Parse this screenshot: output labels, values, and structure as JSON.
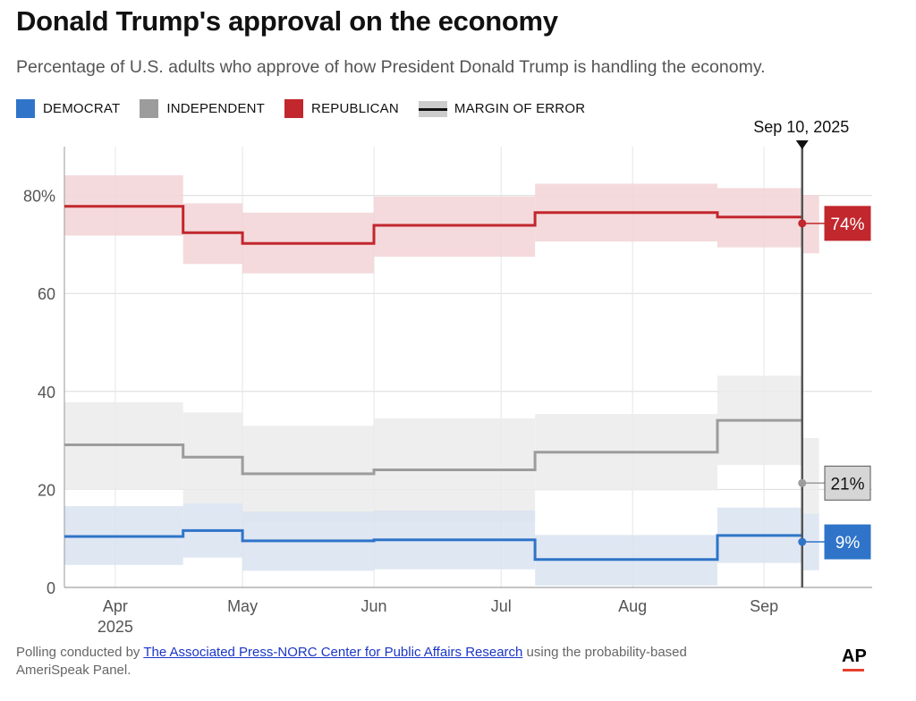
{
  "header": {
    "title": "Donald Trump's approval on the economy",
    "subtitle": "Percentage of U.S. adults who approve of how President Donald Trump is handling the economy."
  },
  "legend": {
    "items": [
      {
        "label": "DEMOCRAT",
        "color": "#2f74c8"
      },
      {
        "label": "INDEPENDENT",
        "color": "#9c9c9c"
      },
      {
        "label": "REPUBLICAN",
        "color": "#c1272d"
      },
      {
        "label": "MARGIN OF ERROR",
        "color": "#111111"
      }
    ]
  },
  "footer": {
    "prefix": "Polling conducted by ",
    "link": "The Associated Press-NORC Center for Public Affairs Research",
    "suffix": " using the probability-based AmeriSpeak Panel.",
    "logo": "AP"
  },
  "chart_data": {
    "type": "line",
    "step": true,
    "y_ticks": [
      {
        "value": 0,
        "label": "0"
      },
      {
        "value": 20,
        "label": "20"
      },
      {
        "value": 40,
        "label": "40"
      },
      {
        "value": 60,
        "label": "60"
      },
      {
        "value": 80,
        "label": "80%"
      }
    ],
    "ylim": [
      0,
      90
    ],
    "xlim": [
      "2025-03-20",
      "2025-09-22"
    ],
    "x_ticks": [
      {
        "date": "2025-04-01",
        "label": "Apr",
        "sublabel": "2025"
      },
      {
        "date": "2025-05-01",
        "label": "May",
        "sublabel": ""
      },
      {
        "date": "2025-06-01",
        "label": "Jun",
        "sublabel": ""
      },
      {
        "date": "2025-07-01",
        "label": "Jul",
        "sublabel": ""
      },
      {
        "date": "2025-08-01",
        "label": "Aug",
        "sublabel": ""
      },
      {
        "date": "2025-09-01",
        "label": "Sep",
        "sublabel": ""
      }
    ],
    "grid": true,
    "current": {
      "date": "2025-09-10",
      "label": "Sep 10, 2025"
    },
    "series": [
      {
        "name": "Republican",
        "color": "#c1272d",
        "band_color": "#f2d3d6",
        "end_label": "74%",
        "end_value": 74.3,
        "steps": [
          {
            "start": "2025-03-20",
            "end": "2025-04-17",
            "value": 77.8,
            "lo": 71.8,
            "hi": 84.1
          },
          {
            "start": "2025-04-17",
            "end": "2025-05-01",
            "value": 72.4,
            "lo": 66.0,
            "hi": 78.4
          },
          {
            "start": "2025-05-01",
            "end": "2025-06-01",
            "value": 70.2,
            "lo": 64.1,
            "hi": 76.5
          },
          {
            "start": "2025-06-01",
            "end": "2025-07-09",
            "value": 73.9,
            "lo": 67.5,
            "hi": 79.8
          },
          {
            "start": "2025-07-09",
            "end": "2025-08-21",
            "value": 76.5,
            "lo": 70.6,
            "hi": 82.4
          },
          {
            "start": "2025-08-21",
            "end": "2025-09-10",
            "value": 75.6,
            "lo": 69.4,
            "hi": 81.5
          },
          {
            "start": "2025-09-10",
            "end": "2025-09-14",
            "value": 74.3,
            "lo": 68.2,
            "hi": 80.1
          }
        ]
      },
      {
        "name": "Independent",
        "color": "#9c9c9c",
        "band_color": "#ebebeb",
        "end_label": "21%",
        "end_value": 21.3,
        "steps": [
          {
            "start": "2025-03-20",
            "end": "2025-04-17",
            "value": 29.1,
            "lo": 19.9,
            "hi": 37.8
          },
          {
            "start": "2025-04-17",
            "end": "2025-05-01",
            "value": 26.6,
            "lo": 17.2,
            "hi": 35.7
          },
          {
            "start": "2025-05-01",
            "end": "2025-06-01",
            "value": 23.2,
            "lo": 13.4,
            "hi": 33.0
          },
          {
            "start": "2025-06-01",
            "end": "2025-07-09",
            "value": 24.0,
            "lo": 13.4,
            "hi": 34.5
          },
          {
            "start": "2025-07-09",
            "end": "2025-08-21",
            "value": 27.6,
            "lo": 19.8,
            "hi": 35.4
          },
          {
            "start": "2025-08-21",
            "end": "2025-09-10",
            "value": 34.1,
            "lo": 25.0,
            "hi": 43.2
          },
          {
            "start": "2025-09-10",
            "end": "2025-09-14",
            "value": 21.3,
            "lo": 14.8,
            "hi": 30.5
          }
        ]
      },
      {
        "name": "Democrat",
        "color": "#2f74c8",
        "band_color": "#d9e3f1",
        "end_label": "9%",
        "end_value": 9.3,
        "steps": [
          {
            "start": "2025-03-20",
            "end": "2025-04-17",
            "value": 10.4,
            "lo": 4.6,
            "hi": 16.6
          },
          {
            "start": "2025-04-17",
            "end": "2025-05-01",
            "value": 11.6,
            "lo": 6.1,
            "hi": 17.2
          },
          {
            "start": "2025-05-01",
            "end": "2025-06-01",
            "value": 9.5,
            "lo": 3.4,
            "hi": 15.5
          },
          {
            "start": "2025-06-01",
            "end": "2025-07-09",
            "value": 9.7,
            "lo": 3.7,
            "hi": 15.7
          },
          {
            "start": "2025-07-09",
            "end": "2025-08-21",
            "value": 5.7,
            "lo": 0.4,
            "hi": 10.7
          },
          {
            "start": "2025-08-21",
            "end": "2025-09-10",
            "value": 10.6,
            "lo": 5.0,
            "hi": 16.3
          },
          {
            "start": "2025-09-10",
            "end": "2025-09-14",
            "value": 9.3,
            "lo": 3.5,
            "hi": 15.0
          }
        ]
      }
    ]
  }
}
